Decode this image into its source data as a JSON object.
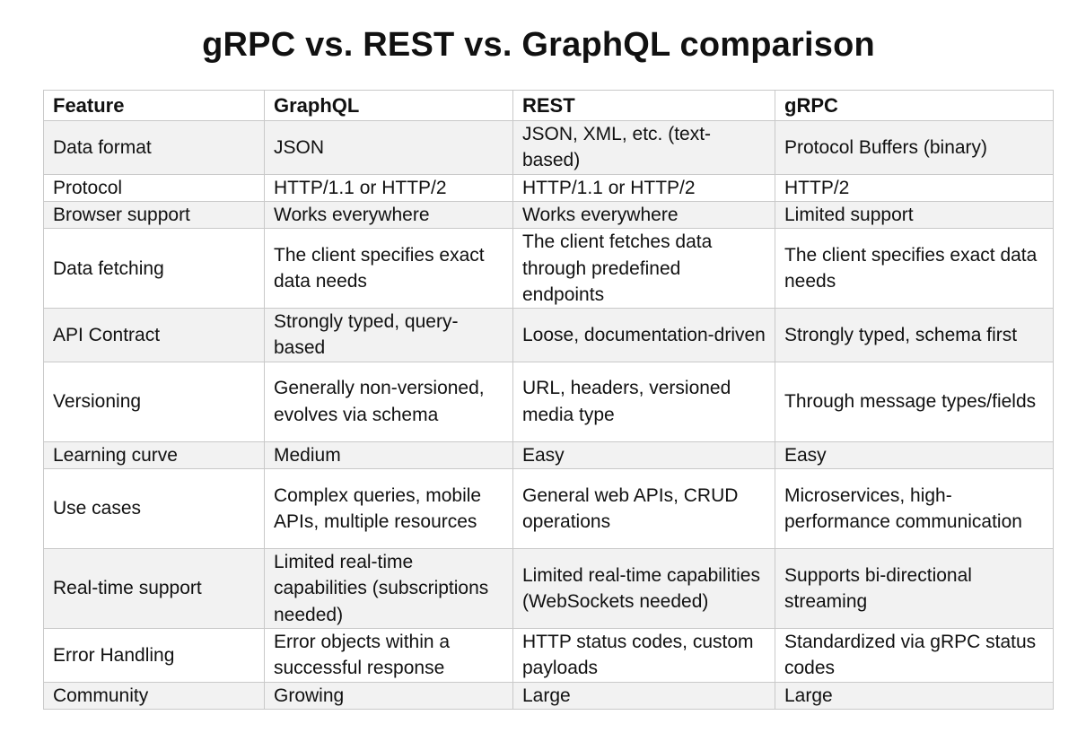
{
  "title": "gRPC vs. REST vs. GraphQL comparison",
  "table": {
    "headers": [
      "Feature",
      "GraphQL",
      "REST",
      "gRPC"
    ],
    "rows": [
      [
        "Data format",
        "JSON",
        "JSON, XML, etc. (text-based)",
        "Protocol Buffers (binary)"
      ],
      [
        "Protocol",
        "HTTP/1.1 or HTTP/2",
        "HTTP/1.1 or HTTP/2",
        "HTTP/2"
      ],
      [
        "Browser support",
        "Works everywhere",
        "Works everywhere",
        "Limited support"
      ],
      [
        "Data fetching",
        "The client specifies exact data needs",
        "The client fetches data through predefined endpoints",
        "The client specifies exact data needs"
      ],
      [
        "API Contract",
        "Strongly typed, query-based",
        "Loose, documentation-driven",
        "Strongly typed, schema first"
      ],
      [
        "Versioning",
        "Generally non-versioned, evolves via schema",
        "URL, headers, versioned media type",
        "Through message types/fields"
      ],
      [
        "Learning curve",
        "Medium",
        "Easy",
        "Easy"
      ],
      [
        "Use cases",
        "Complex queries, mobile APIs, multiple resources",
        "General web APIs, CRUD operations",
        "Microservices, high-performance communication"
      ],
      [
        "Real-time support",
        "Limited real-time capabilities (subscriptions needed)",
        "Limited real-time capabilities (WebSockets needed)",
        "Supports bi-directional streaming"
      ],
      [
        "Error Handling",
        "Error objects within a successful response",
        "HTTP status codes, custom payloads",
        "Standardized via gRPC status codes"
      ],
      [
        "Community",
        "Growing",
        "Large",
        "Large"
      ]
    ]
  }
}
